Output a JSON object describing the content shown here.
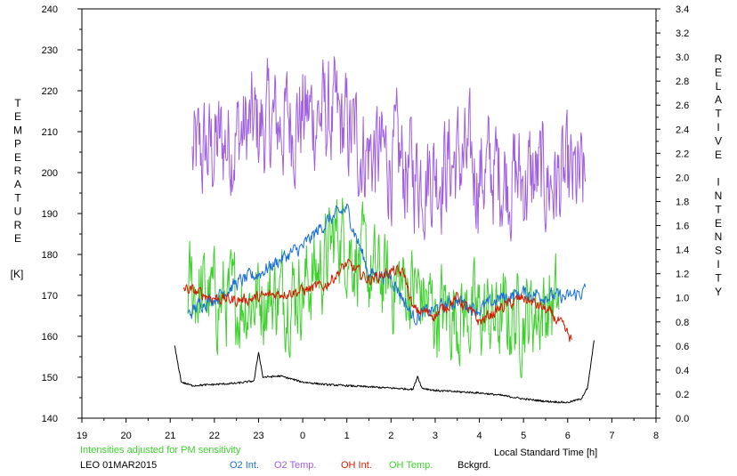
{
  "chart_data": {
    "type": "line",
    "left_axis": {
      "label_letters": [
        "T",
        "E",
        "M",
        "P",
        "E",
        "R",
        "A",
        "T",
        "U",
        "R",
        "E"
      ],
      "unit": "[K]",
      "ylim": [
        140,
        240
      ],
      "ticks": [
        "140",
        "150",
        "160",
        "170",
        "180",
        "190",
        "200",
        "210",
        "220",
        "230",
        "240"
      ]
    },
    "right_axis": {
      "words": [
        [
          "R",
          "E",
          "L",
          "A",
          "T",
          "I",
          "V",
          "E"
        ],
        [
          "I",
          "N",
          "T",
          "E",
          "N",
          "S",
          "I",
          "T",
          "Y"
        ]
      ],
      "ylim": [
        0.0,
        3.4
      ],
      "ticks": [
        "0.0",
        "0.2",
        "0.4",
        "0.6",
        "0.8",
        "1.0",
        "1.2",
        "1.4",
        "1.6",
        "1.8",
        "2.0",
        "2.2",
        "2.4",
        "2.6",
        "2.8",
        "3.0",
        "3.2",
        "3.4"
      ]
    },
    "x_axis": {
      "label": "Local Standard Time [h]",
      "tick_labels": [
        "19",
        "20",
        "21",
        "22",
        "23",
        "0",
        "1",
        "2",
        "3",
        "4",
        "5",
        "6",
        "7",
        "8"
      ]
    },
    "note": "Intensities adjusted for PM sensitivity",
    "station": "LEO 01MAR2015",
    "legend": [
      {
        "label": "O2 Int.",
        "color": "#1a6fd6"
      },
      {
        "label": "O2 Temp.",
        "color": "#a05ee0"
      },
      {
        "label": "OH Int.",
        "color": "#d41a00"
      },
      {
        "label": "OH Temp.",
        "color": "#3ed12e"
      },
      {
        "label": "Bckgrd.",
        "color": "#000000"
      }
    ],
    "series": [
      {
        "key": "o2temp",
        "axis": "left",
        "color": "#a05ee0",
        "noise": 11,
        "points": [
          [
            21.5,
            203
          ],
          [
            22.0,
            206
          ],
          [
            22.5,
            209
          ],
          [
            23.0,
            211
          ],
          [
            23.5,
            212
          ],
          [
            24.0,
            214
          ],
          [
            24.5,
            214
          ],
          [
            25.0,
            210
          ],
          [
            25.5,
            205
          ],
          [
            26.0,
            203
          ],
          [
            26.5,
            200
          ],
          [
            27.0,
            201
          ],
          [
            27.5,
            203
          ],
          [
            28.0,
            200
          ],
          [
            28.5,
            200
          ],
          [
            29.0,
            198
          ],
          [
            29.5,
            198
          ],
          [
            30.0,
            197
          ],
          [
            30.4,
            196
          ]
        ]
      },
      {
        "key": "ohtemp",
        "axis": "left",
        "color": "#3ed12e",
        "noise": 9,
        "points": [
          [
            21.4,
            172
          ],
          [
            22.0,
            169
          ],
          [
            22.5,
            168
          ],
          [
            23.0,
            170
          ],
          [
            23.5,
            170
          ],
          [
            24.0,
            172
          ],
          [
            24.5,
            178
          ],
          [
            24.8,
            186
          ],
          [
            25.0,
            183
          ],
          [
            25.5,
            175
          ],
          [
            26.0,
            173
          ],
          [
            26.5,
            172
          ],
          [
            27.0,
            166
          ],
          [
            27.5,
            166
          ],
          [
            28.0,
            165
          ],
          [
            28.5,
            164
          ],
          [
            29.0,
            165
          ],
          [
            29.5,
            167
          ],
          [
            29.8,
            168
          ]
        ]
      },
      {
        "key": "o2int",
        "axis": "right",
        "color": "#1a6fd6",
        "noise": 0.05,
        "points": [
          [
            21.4,
            0.85
          ],
          [
            21.7,
            0.96
          ],
          [
            22.0,
            1.0
          ],
          [
            22.5,
            1.12
          ],
          [
            23.0,
            1.2
          ],
          [
            23.5,
            1.32
          ],
          [
            24.0,
            1.42
          ],
          [
            24.5,
            1.62
          ],
          [
            25.0,
            1.74
          ],
          [
            25.5,
            1.2
          ],
          [
            26.0,
            1.18
          ],
          [
            26.5,
            0.84
          ],
          [
            27.0,
            0.9
          ],
          [
            27.5,
            0.98
          ],
          [
            28.0,
            0.9
          ],
          [
            28.5,
            1.0
          ],
          [
            29.0,
            1.04
          ],
          [
            29.5,
            1.02
          ],
          [
            30.0,
            1.0
          ],
          [
            30.4,
            1.06
          ]
        ]
      },
      {
        "key": "ohint",
        "axis": "right",
        "color": "#d41a00",
        "noise": 0.04,
        "points": [
          [
            21.3,
            1.08
          ],
          [
            22.0,
            1.0
          ],
          [
            22.5,
            0.98
          ],
          [
            23.0,
            1.0
          ],
          [
            23.5,
            1.04
          ],
          [
            24.0,
            1.06
          ],
          [
            24.5,
            1.1
          ],
          [
            25.0,
            1.28
          ],
          [
            25.5,
            1.15
          ],
          [
            26.0,
            1.22
          ],
          [
            26.3,
            1.2
          ],
          [
            26.5,
            0.9
          ],
          [
            27.0,
            0.86
          ],
          [
            27.5,
            1.0
          ],
          [
            28.0,
            0.8
          ],
          [
            28.5,
            0.92
          ],
          [
            29.0,
            1.0
          ],
          [
            29.5,
            0.9
          ],
          [
            29.8,
            0.8
          ],
          [
            30.1,
            0.64
          ]
        ]
      },
      {
        "key": "bckgrd",
        "axis": "right",
        "color": "#000000",
        "noise": 0.008,
        "points": [
          [
            21.1,
            0.6
          ],
          [
            21.25,
            0.3
          ],
          [
            21.5,
            0.27
          ],
          [
            22.0,
            0.28
          ],
          [
            22.5,
            0.29
          ],
          [
            22.9,
            0.31
          ],
          [
            23.0,
            0.55
          ],
          [
            23.1,
            0.34
          ],
          [
            23.5,
            0.35
          ],
          [
            24.0,
            0.3
          ],
          [
            24.5,
            0.28
          ],
          [
            25.0,
            0.27
          ],
          [
            25.5,
            0.26
          ],
          [
            26.0,
            0.25
          ],
          [
            26.5,
            0.24
          ],
          [
            26.6,
            0.35
          ],
          [
            26.7,
            0.25
          ],
          [
            27.0,
            0.23
          ],
          [
            27.5,
            0.22
          ],
          [
            28.0,
            0.21
          ],
          [
            28.5,
            0.19
          ],
          [
            29.0,
            0.16
          ],
          [
            29.5,
            0.14
          ],
          [
            30.0,
            0.13
          ],
          [
            30.3,
            0.16
          ],
          [
            30.45,
            0.25
          ],
          [
            30.6,
            0.65
          ]
        ]
      }
    ]
  }
}
